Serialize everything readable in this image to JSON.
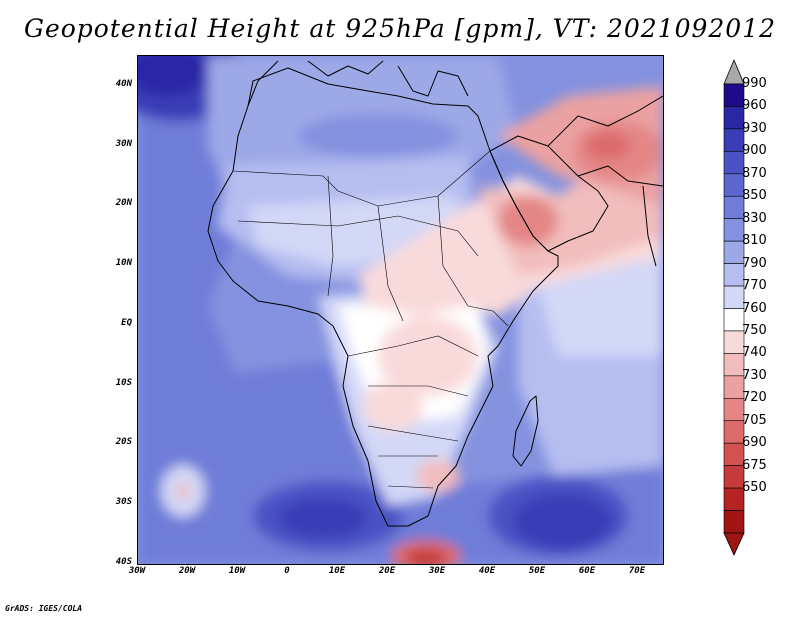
{
  "title": "Geopotential Height at 925hPa [gpm], VT: 2021092012",
  "credit": "GrADS: IGES/COLA",
  "map": {
    "variable": "Geopotential Height",
    "level": "925hPa",
    "units": "gpm",
    "valid_time": "2021092012",
    "lat_labels": [
      "40N",
      "30N",
      "20N",
      "10N",
      "EQ",
      "10S",
      "20S",
      "30S",
      "40S"
    ],
    "lon_labels": [
      "30W",
      "20W",
      "10W",
      "0",
      "10E",
      "20E",
      "30E",
      "40E",
      "50E",
      "60E",
      "70E"
    ]
  },
  "colorbar": {
    "levels": [
      "990",
      "960",
      "930",
      "900",
      "870",
      "850",
      "830",
      "810",
      "790",
      "770",
      "760",
      "750",
      "740",
      "730",
      "720",
      "705",
      "690",
      "675",
      "650"
    ],
    "colors": [
      "#1d0b8c",
      "#2a27a6",
      "#3a3db7",
      "#4a52c4",
      "#5b68cf",
      "#6e7dd8",
      "#8492df",
      "#9da8e7",
      "#b6bef0",
      "#d3d8f7",
      "#ffffff",
      "#f9dada",
      "#f2bdbd",
      "#eba1a1",
      "#e48686",
      "#dc6b6b",
      "#d25252",
      "#c53a3a",
      "#b52323",
      "#a01414"
    ]
  }
}
